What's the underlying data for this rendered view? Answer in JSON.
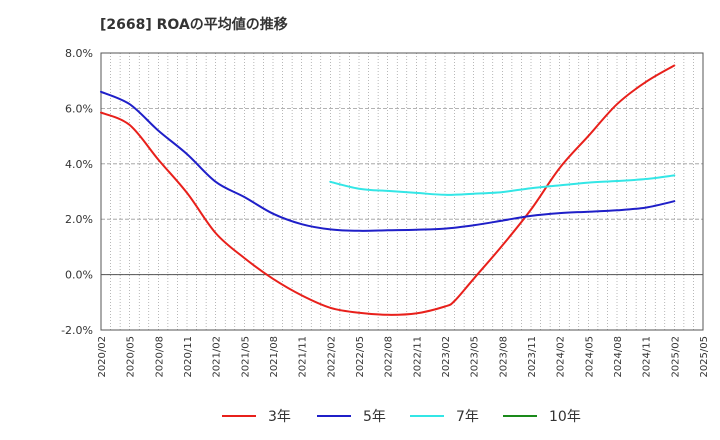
{
  "chart_data": {
    "type": "line",
    "title": "[2668]  ROAの平均値の推移",
    "xlabel": "",
    "ylabel": "",
    "ylim": [
      -2.0,
      8.0
    ],
    "yticks": [
      "8.0%",
      "6.0%",
      "4.0%",
      "2.0%",
      "0.0%",
      "-2.0%"
    ],
    "x_tick_labels": [
      "2020/02",
      "2020/05",
      "2020/08",
      "2020/11",
      "2021/02",
      "2021/05",
      "2021/08",
      "2021/11",
      "2022/02",
      "2022/05",
      "2022/08",
      "2022/11",
      "2023/02",
      "2023/05",
      "2023/08",
      "2023/11",
      "2024/02",
      "2024/05",
      "2024/08",
      "2024/11",
      "2025/02",
      "2025/05"
    ],
    "grid": true,
    "legend_placement": "bottom",
    "series": [
      {
        "name": "3年",
        "color": "#e8201b",
        "x": [
          "2020/02",
          "2020/05",
          "2020/08",
          "2020/11",
          "2021/02",
          "2021/05",
          "2021/08",
          "2021/11",
          "2022/02",
          "2022/05",
          "2022/08",
          "2022/11",
          "2023/02",
          "2023/03",
          "2023/05",
          "2023/08",
          "2023/11",
          "2024/02",
          "2024/05",
          "2024/08",
          "2024/11",
          "2025/02"
        ],
        "values": [
          5.85,
          5.4,
          4.15,
          2.95,
          1.5,
          0.6,
          -0.15,
          -0.75,
          -1.2,
          -1.38,
          -1.45,
          -1.4,
          -1.15,
          -0.95,
          -0.15,
          1.05,
          2.35,
          3.85,
          5.0,
          6.15,
          6.95,
          7.55
        ]
      },
      {
        "name": "5年",
        "color": "#1f1fc8",
        "x": [
          "2020/02",
          "2020/05",
          "2020/08",
          "2020/11",
          "2021/02",
          "2021/05",
          "2021/08",
          "2021/11",
          "2022/02",
          "2022/05",
          "2022/08",
          "2022/11",
          "2023/02",
          "2023/05",
          "2023/08",
          "2023/11",
          "2024/02",
          "2024/05",
          "2024/08",
          "2024/11",
          "2025/02"
        ],
        "values": [
          6.6,
          6.15,
          5.2,
          4.35,
          3.35,
          2.8,
          2.2,
          1.82,
          1.63,
          1.58,
          1.6,
          1.62,
          1.66,
          1.78,
          1.95,
          2.12,
          2.22,
          2.27,
          2.32,
          2.42,
          2.65
        ]
      },
      {
        "name": "7年",
        "color": "#33e6e6",
        "x": [
          "2022/02",
          "2022/05",
          "2022/08",
          "2022/11",
          "2023/02",
          "2023/05",
          "2023/08",
          "2023/11",
          "2024/02",
          "2024/05",
          "2024/08",
          "2024/11",
          "2025/02"
        ],
        "values": [
          3.35,
          3.1,
          3.02,
          2.95,
          2.88,
          2.92,
          2.98,
          3.12,
          3.22,
          3.32,
          3.38,
          3.45,
          3.58
        ]
      },
      {
        "name": "10年",
        "color": "#1a8a1a",
        "x": [],
        "values": []
      }
    ]
  }
}
